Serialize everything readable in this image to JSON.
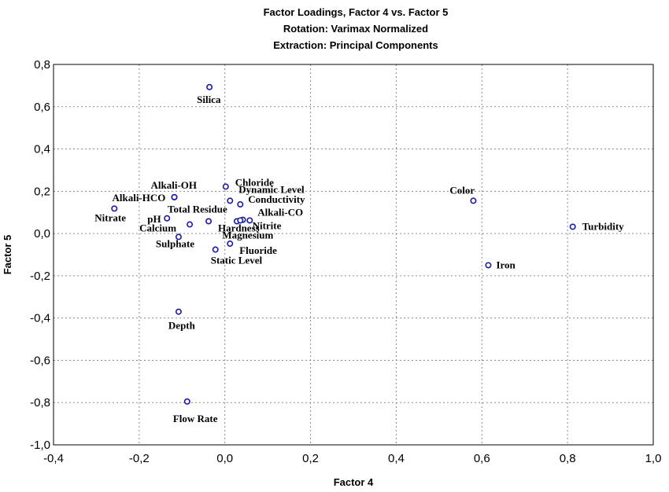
{
  "chart_data": {
    "type": "scatter",
    "title": [
      "Factor Loadings, Factor 4 vs. Factor 5",
      "Rotation: Varimax Normalized",
      "Extraction: Principal Components"
    ],
    "xlabel": "Factor 4",
    "ylabel": "Factor 5",
    "xlim": [
      -0.4,
      1.0
    ],
    "ylim": [
      -1.0,
      0.8
    ],
    "xticks": [
      -0.4,
      -0.2,
      0.0,
      0.2,
      0.4,
      0.6,
      0.8,
      1.0
    ],
    "yticks": [
      -1.0,
      -0.8,
      -0.6,
      -0.4,
      -0.2,
      0.0,
      0.2,
      0.4,
      0.6,
      0.8
    ],
    "xtick_labels": [
      "-0,4",
      "-0,2",
      "0,0",
      "0,2",
      "0,4",
      "0,6",
      "0,8",
      "1,0"
    ],
    "ytick_labels": [
      "-1,0",
      "-0,8",
      "-0,6",
      "-0,4",
      "-0,2",
      "0,0",
      "0,2",
      "0,4",
      "0,6",
      "0,8"
    ],
    "grid": true,
    "points": [
      {
        "label": "Silica",
        "x": -0.036,
        "y": 0.693
      },
      {
        "label": "Chloride",
        "x": 0.002,
        "y": 0.222
      },
      {
        "label": "Alkali-OH",
        "x": -0.118,
        "y": 0.172
      },
      {
        "label": "Alkali-HCO",
        "x": -0.118,
        "y": 0.172
      },
      {
        "label": "Dynamic Level",
        "x": 0.012,
        "y": 0.155
      },
      {
        "label": "Conductivity",
        "x": 0.036,
        "y": 0.138
      },
      {
        "label": "Nitrate",
        "x": -0.258,
        "y": 0.118
      },
      {
        "label": "pH",
        "x": -0.135,
        "y": 0.072
      },
      {
        "label": "Total Residue",
        "x": -0.038,
        "y": 0.058
      },
      {
        "label": "Alkali-CO",
        "x": 0.058,
        "y": 0.062
      },
      {
        "label": "Nitrite",
        "x": 0.042,
        "y": 0.065
      },
      {
        "label": "Calcium",
        "x": -0.082,
        "y": 0.043
      },
      {
        "label": "Hardness",
        "x": 0.028,
        "y": 0.058
      },
      {
        "label": "Magnesium",
        "x": 0.036,
        "y": 0.062
      },
      {
        "label": "Sulphate",
        "x": -0.108,
        "y": -0.016
      },
      {
        "label": "Fluoride",
        "x": 0.012,
        "y": -0.048
      },
      {
        "label": "Static Level",
        "x": -0.022,
        "y": -0.076
      },
      {
        "label": "Depth",
        "x": -0.108,
        "y": -0.37
      },
      {
        "label": "Flow Rate",
        "x": -0.088,
        "y": -0.795
      },
      {
        "label": "Color",
        "x": 0.58,
        "y": 0.155
      },
      {
        "label": "Turbidity",
        "x": 0.812,
        "y": 0.032
      },
      {
        "label": "Iron",
        "x": 0.615,
        "y": -0.15
      }
    ]
  }
}
